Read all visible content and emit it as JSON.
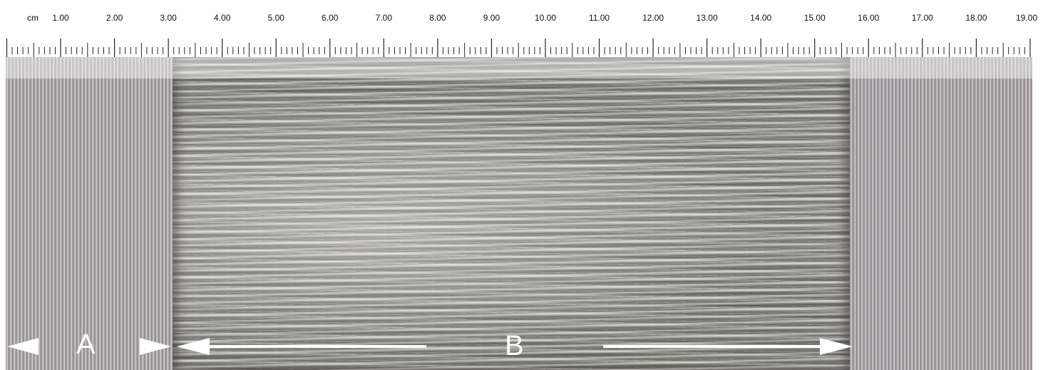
{
  "ruler": {
    "unit_label": "cm",
    "tick_labels": [
      "1.00",
      "2.00",
      "3.00",
      "4.00",
      "5.00",
      "6.00",
      "7.00",
      "8.00",
      "9.00",
      "10.00",
      "11.00",
      "12.00",
      "13.00",
      "14.00",
      "15.00",
      "16.00",
      "17.00",
      "18.00",
      "19.00"
    ]
  },
  "zones": {
    "a_label": "A",
    "b_label": "B"
  },
  "colors": {
    "annotation": "#ffffff",
    "ruler_text": "#111111"
  }
}
